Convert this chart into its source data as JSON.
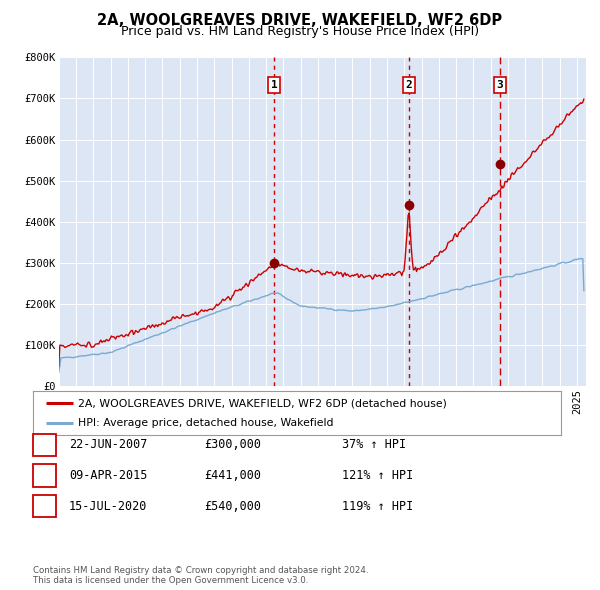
{
  "title": "2A, WOOLGREAVES DRIVE, WAKEFIELD, WF2 6DP",
  "subtitle": "Price paid vs. HM Land Registry's House Price Index (HPI)",
  "background_color": "#ffffff",
  "chart_bg_color": "#dce6f5",
  "grid_color": "#ffffff",
  "ylim": [
    0,
    800000
  ],
  "xlim_start": 1995.0,
  "xlim_end": 2025.5,
  "ytick_labels": [
    "£0",
    "£100K",
    "£200K",
    "£300K",
    "£400K",
    "£500K",
    "£600K",
    "£700K",
    "£800K"
  ],
  "ytick_values": [
    0,
    100000,
    200000,
    300000,
    400000,
    500000,
    600000,
    700000,
    800000
  ],
  "house_line_color": "#cc0000",
  "hpi_line_color": "#7aaad0",
  "sale_marker_color": "#880000",
  "sale_marker_size": 7,
  "vline_color": "#cc0000",
  "sales": [
    {
      "year": 2007.47,
      "price": 300000,
      "label": "1",
      "vline_style": ":"
    },
    {
      "year": 2015.27,
      "price": 441000,
      "label": "2",
      "vline_style": ":"
    },
    {
      "year": 2020.54,
      "price": 540000,
      "label": "3",
      "vline_style": "--"
    }
  ],
  "sale_table": [
    {
      "num": "1",
      "date": "22-JUN-2007",
      "price": "£300,000",
      "hpi_pct": "37% ↑ HPI"
    },
    {
      "num": "2",
      "date": "09-APR-2015",
      "price": "£441,000",
      "hpi_pct": "121% ↑ HPI"
    },
    {
      "num": "3",
      "date": "15-JUL-2020",
      "price": "£540,000",
      "hpi_pct": "119% ↑ HPI"
    }
  ],
  "legend_label_house": "2A, WOOLGREAVES DRIVE, WAKEFIELD, WF2 6DP (detached house)",
  "legend_label_hpi": "HPI: Average price, detached house, Wakefield",
  "footer": "Contains HM Land Registry data © Crown copyright and database right 2024.\nThis data is licensed under the Open Government Licence v3.0.",
  "title_fontsize": 10.5,
  "subtitle_fontsize": 9,
  "tick_fontsize": 7.5,
  "label_num_box_edge": "#cc0000",
  "fig_width": 6.0,
  "fig_height": 5.9,
  "fig_dpi": 100
}
